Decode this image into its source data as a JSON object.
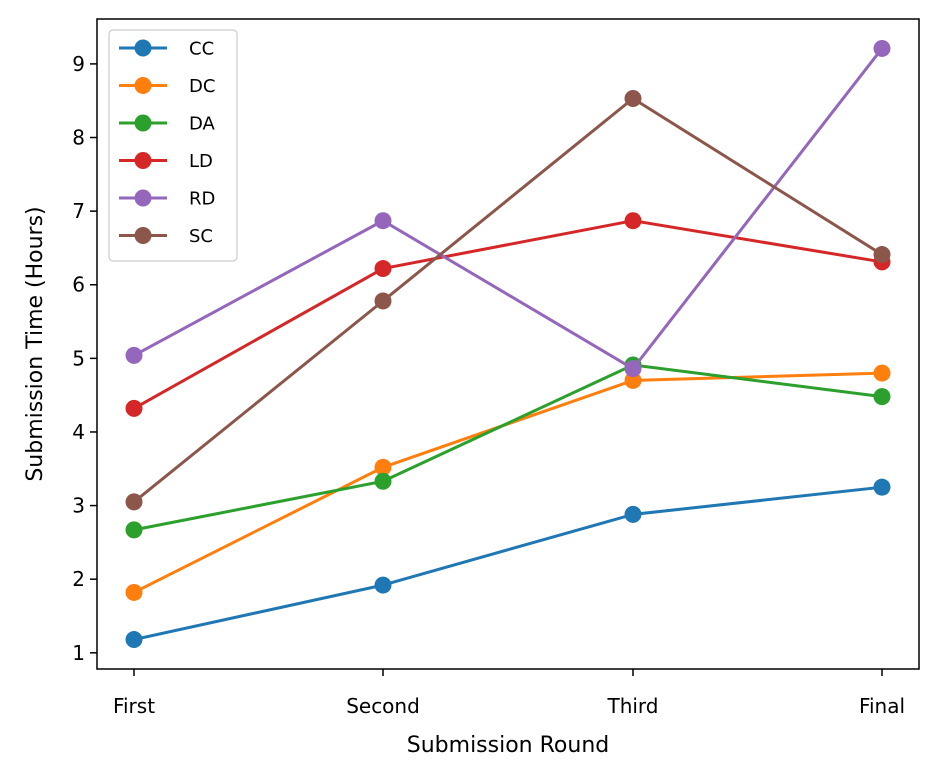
{
  "chart_data": {
    "type": "line",
    "categories": [
      "First",
      "Second",
      "Third",
      "Final"
    ],
    "series": [
      {
        "name": "CC",
        "color": "#1f77b4",
        "values": [
          1.18,
          1.92,
          2.88,
          3.25
        ]
      },
      {
        "name": "DC",
        "color": "#ff7f0e",
        "values": [
          1.82,
          3.52,
          4.7,
          4.8
        ]
      },
      {
        "name": "DA",
        "color": "#2ca02c",
        "values": [
          2.67,
          3.33,
          4.91,
          4.48
        ]
      },
      {
        "name": "LD",
        "color": "#d62728",
        "values": [
          4.32,
          6.22,
          6.87,
          6.31
        ]
      },
      {
        "name": "RD",
        "color": "#9467bd",
        "values": [
          5.04,
          6.87,
          4.86,
          9.21
        ]
      },
      {
        "name": "SC",
        "color": "#8c564b",
        "values": [
          3.05,
          5.78,
          8.53,
          6.41
        ]
      }
    ],
    "xlabel": "Submission Round",
    "ylabel": "Submission Time (Hours)",
    "yticks": [
      1,
      2,
      3,
      4,
      5,
      6,
      7,
      8,
      9
    ],
    "ylim": [
      0.78,
      9.61
    ],
    "grid": false,
    "legend": "upper-left"
  }
}
